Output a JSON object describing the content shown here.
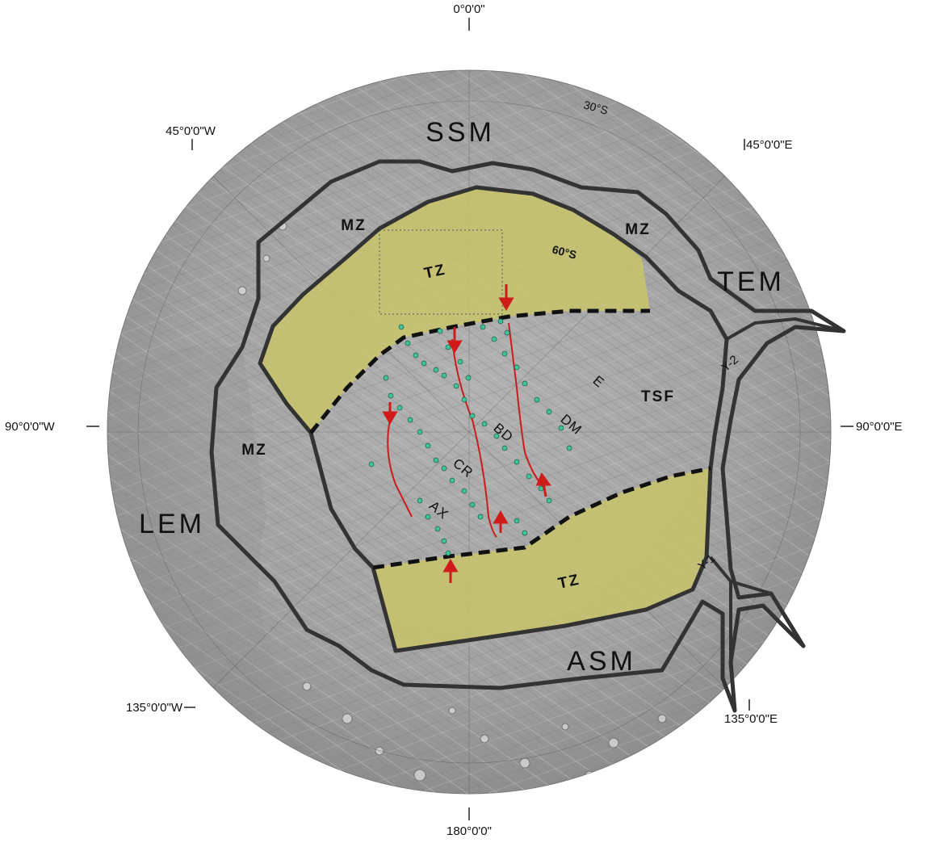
{
  "map": {
    "longitude_labels": {
      "top": "0°0'0\"",
      "top_left": "45°0'0\"W",
      "top_right": "45°0'0\"E",
      "left": "90°0'0\"W",
      "right": "90°0'0\"E",
      "bottom_left": "135°0'0\"W",
      "bottom_right": "135°0'0\"E",
      "bottom": "180°0'0\""
    },
    "latitude_labels": {
      "outer": "30°S",
      "inner": "60°S"
    },
    "regions": {
      "ssm": "SSM",
      "tem": "TEM",
      "lem": "LEM",
      "asm": "ASM",
      "tsf": "TSF"
    },
    "zones": {
      "mz_upper_left": "MZ",
      "mz_upper_right": "MZ",
      "mz_left": "MZ",
      "tz_upper": "TZ",
      "tz_lower": "TZ"
    },
    "tiger_stripes": {
      "ax": "AX",
      "cr": "CR",
      "bd": "BD",
      "dm": "DM",
      "e": "E"
    },
    "features": {
      "y1": "Y-1",
      "y2": "Y-2"
    },
    "colors": {
      "globe": "#a3a3a3",
      "transition_zone": "#c9c46a",
      "boundary": "#333333",
      "fracture": "#c81d1d",
      "marker": "#3fc49a"
    }
  }
}
